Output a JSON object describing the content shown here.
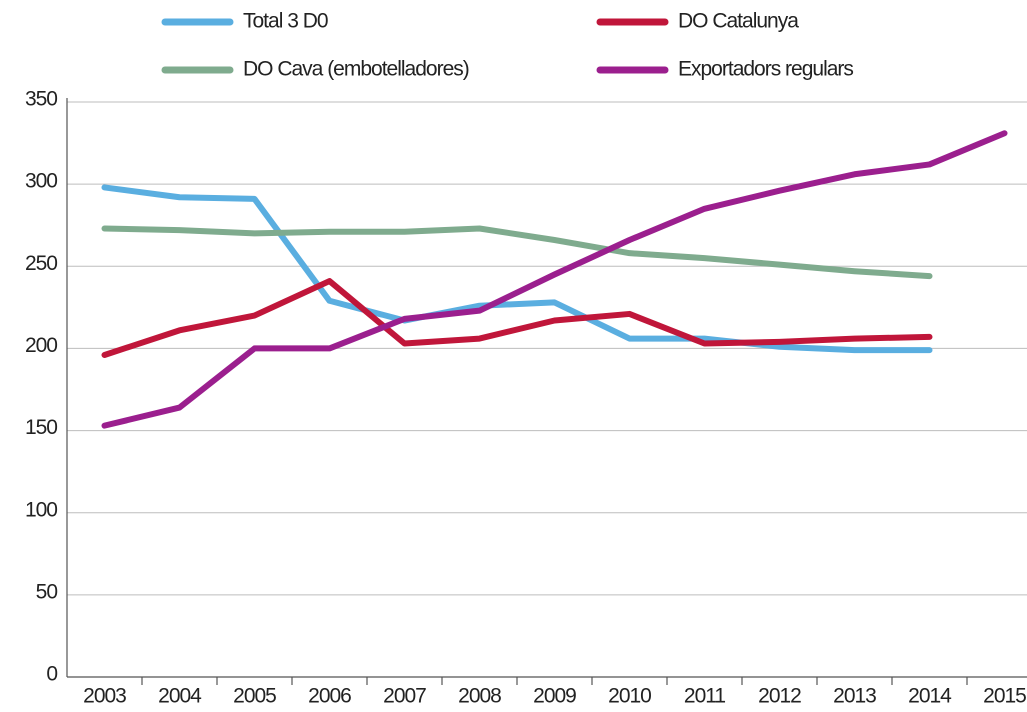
{
  "chart_data": {
    "type": "line",
    "categories": [
      "2003",
      "2004",
      "2005",
      "2006",
      "2007",
      "2008",
      "2009",
      "2010",
      "2011",
      "2012",
      "2013",
      "2014",
      "2015"
    ],
    "series": [
      {
        "name": "Total 3 D0",
        "color": "#5aaee0",
        "values": [
          298,
          292,
          291,
          229,
          217,
          226,
          228,
          206,
          206,
          201,
          199,
          199,
          null
        ]
      },
      {
        "name": "DO Catalunya",
        "color": "#c0163a",
        "values": [
          196,
          211,
          220,
          241,
          203,
          206,
          217,
          221,
          203,
          204,
          206,
          207,
          null
        ]
      },
      {
        "name": "DO Cava (embotelladores)",
        "color": "#7fab8e",
        "values": [
          273,
          272,
          270,
          271,
          271,
          273,
          266,
          258,
          255,
          251,
          247,
          244,
          null
        ]
      },
      {
        "name": "Exportadors regulars",
        "color": "#9b1f8e",
        "values": [
          153,
          164,
          200,
          200,
          218,
          223,
          245,
          266,
          285,
          296,
          306,
          312,
          331
        ]
      }
    ],
    "ylim": [
      0,
      350
    ],
    "yticks": [
      0,
      50,
      100,
      150,
      200,
      250,
      300,
      350
    ],
    "grid": true
  }
}
